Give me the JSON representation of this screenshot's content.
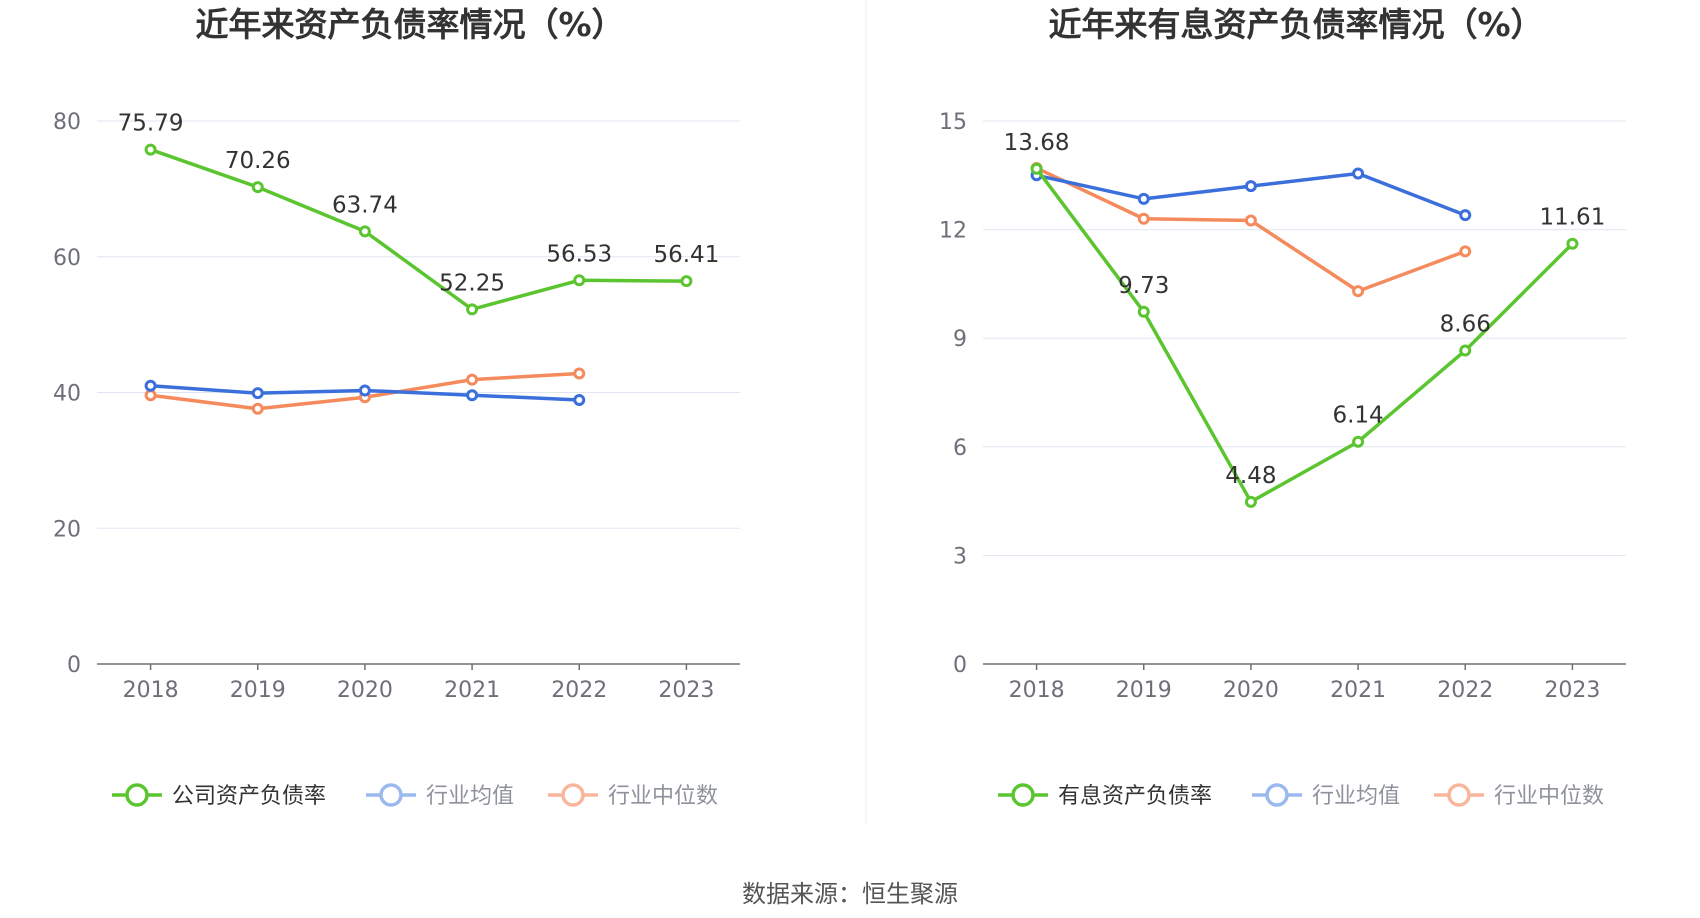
{
  "source_text": "数据来源：恒生聚源",
  "chart_data": [
    {
      "type": "line",
      "title": "近年来资产负债率情况（%）",
      "categories": [
        "2018",
        "2019",
        "2020",
        "2021",
        "2022",
        "2023"
      ],
      "ylim": [
        0,
        80
      ],
      "yticks": [
        0,
        20,
        40,
        60,
        80
      ],
      "grid": true,
      "legend_position": "bottom",
      "series": [
        {
          "name": "公司资产负债率",
          "color": "#5bc530",
          "values": [
            75.79,
            70.26,
            63.74,
            52.25,
            56.53,
            56.41
          ],
          "labels": [
            "75.79",
            "70.26",
            "63.74",
            "52.25",
            "56.53",
            "56.41"
          ],
          "show_labels": true
        },
        {
          "name": "行业均值",
          "color": "#3b6fdc",
          "values": [
            41.0,
            39.9,
            40.3,
            39.6,
            38.9,
            null
          ],
          "show_labels": false
        },
        {
          "name": "行业中位数",
          "color": "#f58a5c",
          "values": [
            39.6,
            37.6,
            39.3,
            41.9,
            42.8,
            null
          ],
          "show_labels": false
        }
      ]
    },
    {
      "type": "line",
      "title": "近年来有息资产负债率情况（%）",
      "categories": [
        "2018",
        "2019",
        "2020",
        "2021",
        "2022",
        "2023"
      ],
      "ylim": [
        0,
        15
      ],
      "yticks": [
        0,
        3,
        6,
        9,
        12,
        15
      ],
      "grid": true,
      "legend_position": "bottom",
      "series": [
        {
          "name": "有息资产负债率",
          "color": "#5bc530",
          "values": [
            13.68,
            9.73,
            4.48,
            6.14,
            8.66,
            11.61
          ],
          "labels": [
            "13.68",
            "9.73",
            "4.48",
            "6.14",
            "8.66",
            "11.61"
          ],
          "show_labels": true
        },
        {
          "name": "行业均值",
          "color": "#3b6fdc",
          "values": [
            13.5,
            12.85,
            13.2,
            13.55,
            12.4,
            null
          ],
          "show_labels": false
        },
        {
          "name": "行业中位数",
          "color": "#f58a5c",
          "values": [
            13.7,
            12.3,
            12.25,
            10.3,
            11.4,
            null
          ],
          "show_labels": false
        }
      ]
    }
  ]
}
